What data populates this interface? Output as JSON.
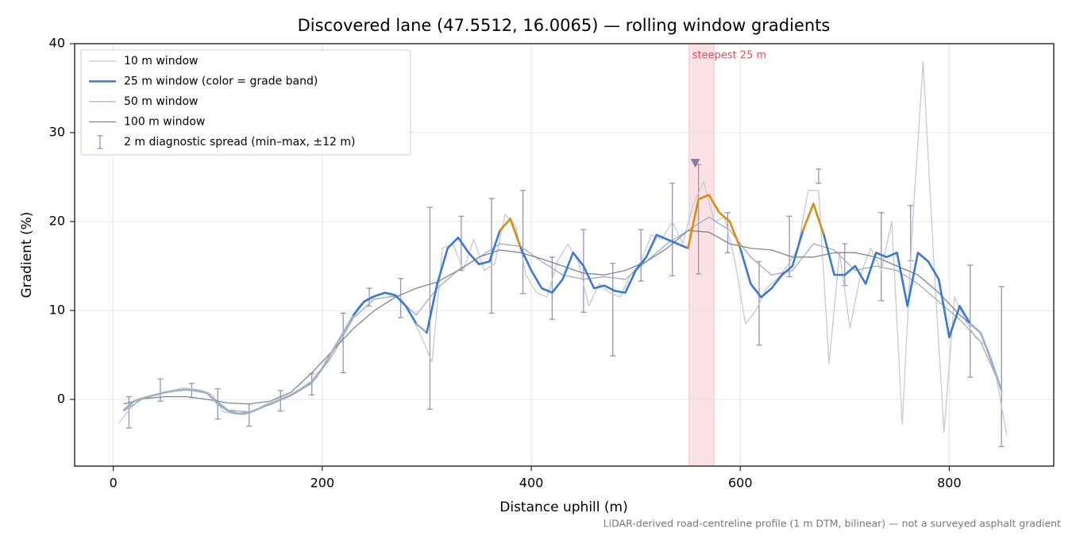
{
  "chart_data": {
    "type": "line",
    "title": "Discovered lane (47.5512, 16.0065) — rolling window gradients",
    "xlabel": "Distance uphill (m)",
    "ylabel": "Gradient (%)",
    "footnote": "LiDAR-derived road-centreline profile (1 m DTM, bilinear) — not a surveyed asphalt gradient",
    "xlim": [
      -37,
      900
    ],
    "ylim": [
      -7.5,
      40
    ],
    "xticks": [
      0,
      200,
      400,
      600,
      800
    ],
    "yticks": [
      0,
      10,
      20,
      30,
      40
    ],
    "grid": true,
    "legend": "upper left",
    "series": [
      {
        "name": "10 m window",
        "color": "#c3cad3",
        "width": 1.3,
        "x": [
          5,
          15,
          25,
          35,
          45,
          55,
          65,
          75,
          85,
          95,
          105,
          115,
          125,
          135,
          145,
          155,
          165,
          175,
          185,
          195,
          205,
          215,
          225,
          235,
          245,
          255,
          265,
          275,
          285,
          295,
          305,
          315,
          325,
          335,
          345,
          355,
          365,
          375,
          385,
          395,
          405,
          415,
          425,
          435,
          445,
          455,
          465,
          475,
          485,
          495,
          505,
          515,
          525,
          535,
          545,
          555,
          565,
          575,
          585,
          595,
          605,
          615,
          625,
          635,
          645,
          655,
          665,
          675,
          685,
          695,
          705,
          715,
          725,
          735,
          745,
          755,
          765,
          775,
          785,
          795,
          805,
          815,
          825,
          835,
          845,
          855
        ],
        "values": [
          -2.7,
          -1.2,
          0.0,
          0.3,
          0.6,
          0.9,
          1.3,
          1.2,
          1.0,
          0.5,
          -1.4,
          -1.6,
          -1.7,
          -1.3,
          -0.6,
          -0.2,
          0.3,
          0.8,
          1.5,
          2.5,
          4.5,
          6.5,
          8.5,
          10.5,
          11.5,
          11.8,
          12.0,
          11.5,
          9.5,
          7.0,
          4.2,
          17.0,
          17.5,
          14.5,
          18.0,
          14.5,
          15.2,
          20.8,
          19.5,
          14.0,
          12.0,
          11.5,
          15.5,
          17.5,
          15.5,
          10.5,
          13.0,
          12.0,
          11.5,
          14.0,
          15.5,
          18.5,
          18.0,
          20.0,
          17.5,
          22.0,
          24.5,
          20.0,
          20.5,
          15.5,
          8.5,
          10.0,
          12.5,
          13.5,
          15.0,
          17.0,
          23.5,
          23.5,
          4.0,
          16.5,
          8.0,
          14.0,
          17.0,
          14.5,
          20.0,
          -2.8,
          20.0,
          38.0,
          16.0,
          -3.7,
          11.5,
          9.0,
          7.0,
          6.0,
          2.5,
          -4.0
        ]
      },
      {
        "name": "25 m window (color = grade band)",
        "color": "#3a78d4",
        "width": 2.6,
        "band_edges": [
          10,
          20
        ],
        "band_colors": [
          "#9fb0c6",
          "#3a78d4",
          "#d98c10"
        ],
        "x": [
          10,
          20,
          30,
          40,
          50,
          60,
          70,
          80,
          90,
          100,
          110,
          120,
          130,
          140,
          150,
          160,
          170,
          180,
          190,
          200,
          210,
          220,
          230,
          240,
          250,
          260,
          270,
          280,
          290,
          300,
          310,
          320,
          330,
          340,
          350,
          360,
          370,
          380,
          390,
          400,
          410,
          420,
          430,
          440,
          450,
          460,
          470,
          480,
          490,
          500,
          510,
          520,
          530,
          540,
          550,
          560,
          570,
          580,
          590,
          600,
          610,
          620,
          630,
          640,
          650,
          660,
          670,
          680,
          690,
          700,
          710,
          720,
          730,
          740,
          750,
          760,
          770,
          780,
          790,
          800,
          810,
          820,
          830,
          840,
          850
        ],
        "values": [
          -1.2,
          -0.2,
          0.2,
          0.5,
          0.8,
          1.0,
          1.1,
          1.0,
          0.7,
          -0.5,
          -1.3,
          -1.6,
          -1.5,
          -1.0,
          -0.5,
          0.0,
          0.5,
          1.2,
          2.0,
          3.5,
          5.5,
          7.5,
          9.5,
          11.0,
          11.6,
          12.0,
          11.7,
          10.5,
          8.5,
          7.5,
          13.0,
          17.0,
          18.2,
          16.5,
          15.2,
          15.5,
          19.0,
          20.3,
          17.0,
          14.5,
          12.5,
          12.0,
          13.5,
          16.5,
          15.0,
          12.5,
          12.8,
          12.2,
          12.0,
          14.5,
          16.0,
          18.5,
          18.0,
          17.5,
          17.0,
          22.5,
          23.0,
          21.0,
          20.0,
          17.0,
          13.0,
          11.5,
          12.5,
          14.0,
          15.0,
          19.0,
          22.0,
          18.5,
          14.0,
          14.0,
          15.0,
          13.0,
          16.5,
          16.0,
          16.5,
          10.5,
          16.5,
          15.5,
          13.5,
          7.0,
          10.5,
          8.5,
          7.5,
          4.5,
          1.0
        ]
      },
      {
        "name": "50 m window",
        "color": "#a3acba",
        "width": 1.3,
        "x": [
          10,
          30,
          50,
          70,
          90,
          110,
          130,
          150,
          170,
          190,
          210,
          230,
          250,
          270,
          290,
          310,
          330,
          350,
          370,
          390,
          410,
          430,
          450,
          470,
          490,
          510,
          530,
          550,
          570,
          590,
          610,
          630,
          650,
          670,
          690,
          710,
          730,
          750,
          770,
          790,
          810,
          830,
          850
        ],
        "values": [
          -1.3,
          0.2,
          0.8,
          1.1,
          0.7,
          -1.2,
          -1.4,
          -0.6,
          0.4,
          1.8,
          5.0,
          9.2,
          11.3,
          11.6,
          9.5,
          12.5,
          14.5,
          16.0,
          17.5,
          17.2,
          15.5,
          14.0,
          13.5,
          13.8,
          13.5,
          15.5,
          17.5,
          19.0,
          20.5,
          19.0,
          16.0,
          14.0,
          14.5,
          17.5,
          16.8,
          14.5,
          15.0,
          14.5,
          13.0,
          11.0,
          9.0,
          6.5,
          1.2
        ]
      },
      {
        "name": "100 m window",
        "color": "#7f8591",
        "width": 1.3,
        "x": [
          10,
          30,
          50,
          70,
          90,
          110,
          130,
          150,
          170,
          190,
          210,
          230,
          250,
          270,
          290,
          310,
          330,
          350,
          370,
          390,
          410,
          430,
          450,
          470,
          490,
          510,
          530,
          550,
          570,
          590,
          610,
          630,
          650,
          670,
          690,
          710,
          730,
          750,
          770,
          790,
          810,
          830,
          850
        ],
        "values": [
          -0.5,
          0.1,
          0.3,
          0.3,
          0.0,
          -0.4,
          -0.5,
          -0.2,
          0.8,
          3.0,
          5.5,
          8.0,
          10.0,
          11.5,
          12.5,
          13.2,
          14.5,
          16.0,
          16.8,
          16.5,
          15.8,
          15.0,
          14.2,
          14.0,
          14.5,
          15.5,
          17.0,
          19.0,
          18.8,
          17.5,
          17.0,
          16.8,
          16.0,
          16.0,
          16.5,
          16.5,
          16.0,
          15.0,
          14.0,
          12.0,
          9.5,
          7.5,
          1.0
        ]
      }
    ],
    "errorbars": {
      "name": "2 m diagnostic spread (min–max, ±12 m)",
      "color": "#9a90b8",
      "x": [
        15,
        45,
        75,
        100,
        130,
        160,
        190,
        220,
        245,
        275,
        303,
        333,
        362,
        392,
        420,
        450,
        478,
        505,
        535,
        560,
        588,
        618,
        647,
        675,
        700,
        735,
        763,
        820,
        850
      ],
      "min": [
        -3.2,
        -0.2,
        0.2,
        -2.2,
        -3.0,
        -1.3,
        0.5,
        3.0,
        10.5,
        9.2,
        -1.1,
        14.5,
        9.7,
        11.9,
        9.0,
        9.8,
        4.9,
        13.3,
        13.9,
        14.1,
        16.5,
        6.1,
        13.8,
        24.3,
        12.8,
        11.1,
        15.6,
        2.5,
        -5.3
      ],
      "max": [
        0.3,
        2.3,
        1.8,
        1.2,
        -0.5,
        1.0,
        2.9,
        9.7,
        12.5,
        13.6,
        21.6,
        20.6,
        22.6,
        23.5,
        16.0,
        19.1,
        15.3,
        19.1,
        24.3,
        26.4,
        21.0,
        15.5,
        20.6,
        25.9,
        17.5,
        21.0,
        21.8,
        15.1,
        12.7
      ]
    },
    "highlight": {
      "x0": 551,
      "x1": 575,
      "label": "steepest 25 m",
      "color": "#e05060"
    },
    "marker": {
      "x": 557,
      "y": 26.6,
      "color": "#8a78a8"
    }
  }
}
